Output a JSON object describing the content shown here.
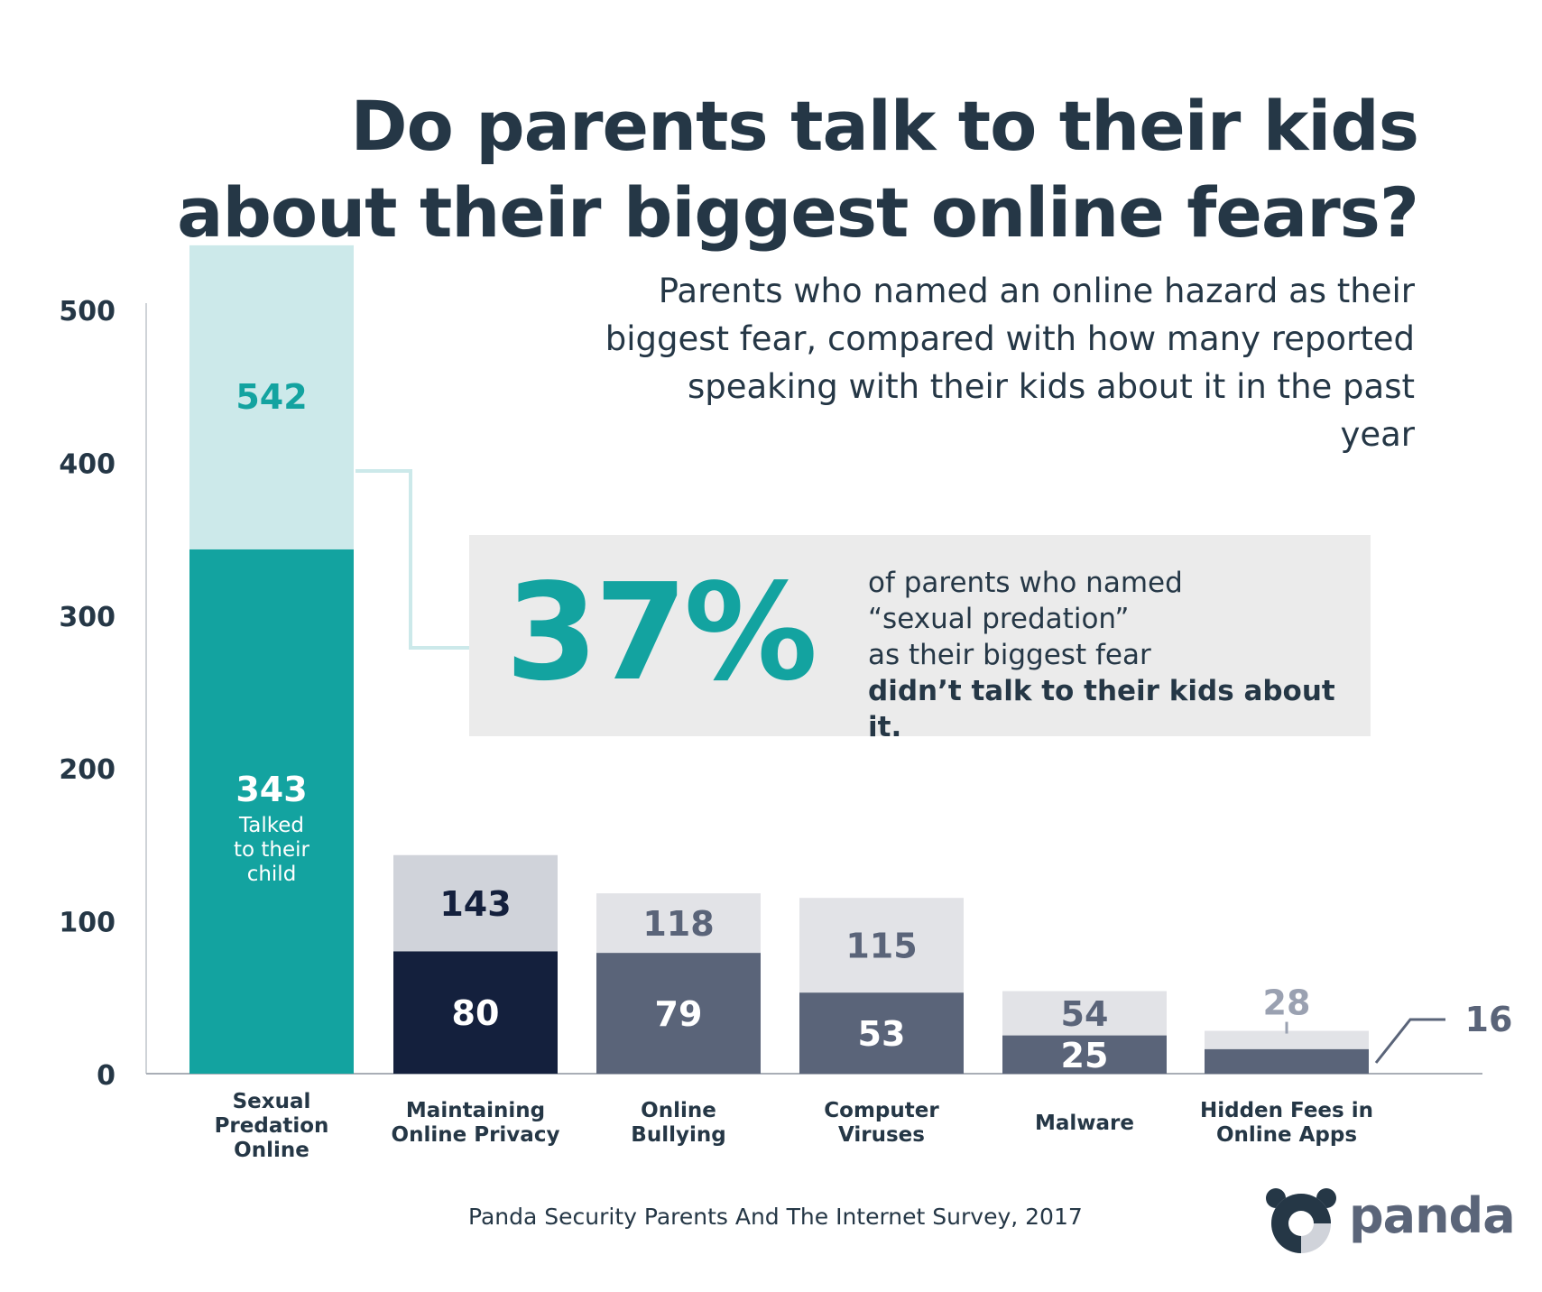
{
  "title": "Do parents talk to their kids about their biggest online fears?",
  "subtitle": "Parents who named an online hazard as their biggest fear, compared with how many reported speaking with their kids about it in the past year",
  "callout": {
    "percent": "37%",
    "line1": "of parents who named",
    "line2": "“sexual predation”",
    "line3": "as their biggest fear",
    "line4": "didn’t talk to their kids about it."
  },
  "source": "Panda Security Parents And The Internet Survey, 2017",
  "logo_text": "panda",
  "colors": {
    "teal": "#13a3a0",
    "teal_light": "#cce9ea",
    "navy": "#14203d",
    "slate": "#5a6479",
    "grey_light": "#e2e3e7",
    "grey_mid": "#d0d3da",
    "text_dark": "#253746"
  },
  "chart_data": {
    "type": "bar",
    "stacked": false,
    "ylim": [
      0,
      500
    ],
    "yticks": [
      "0",
      "100",
      "200",
      "300",
      "400",
      "500"
    ],
    "categories": [
      [
        "Sexual",
        "Predation",
        "Online"
      ],
      [
        "Maintaining",
        "Online Privacy"
      ],
      [
        "Online",
        "Bullying"
      ],
      [
        "Computer",
        "Viruses"
      ],
      [
        "Malware"
      ],
      [
        "Hidden Fees in",
        "Online Apps"
      ]
    ],
    "series": [
      {
        "values": [
          542,
          143,
          118,
          115,
          54,
          28
        ]
      },
      {
        "values": [
          343,
          80,
          79,
          53,
          25,
          16
        ]
      }
    ],
    "annotations": {
      "talked_label": [
        "Talked",
        "to their",
        "child"
      ]
    }
  }
}
